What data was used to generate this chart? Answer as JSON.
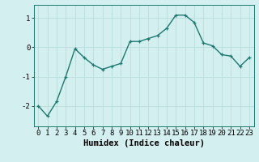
{
  "x": [
    0,
    1,
    2,
    3,
    4,
    5,
    6,
    7,
    8,
    9,
    10,
    11,
    12,
    13,
    14,
    15,
    16,
    17,
    18,
    19,
    20,
    21,
    22,
    23
  ],
  "y": [
    -2.0,
    -2.35,
    -1.85,
    -1.0,
    -0.05,
    -0.35,
    -0.6,
    -0.75,
    -0.65,
    -0.55,
    0.2,
    0.2,
    0.3,
    0.4,
    0.65,
    1.1,
    1.1,
    0.85,
    0.15,
    0.05,
    -0.25,
    -0.3,
    -0.65,
    -0.35
  ],
  "line_color": "#1a7a6e",
  "marker": "+",
  "marker_size": 3,
  "bg_color": "#d4efef",
  "grid_color": "#b8dede",
  "xlabel": "Humidex (Indice chaleur)",
  "xlim": [
    -0.5,
    23.5
  ],
  "ylim": [
    -2.7,
    1.45
  ],
  "yticks": [
    -2,
    -1,
    0,
    1
  ],
  "xticks": [
    0,
    1,
    2,
    3,
    4,
    5,
    6,
    7,
    8,
    9,
    10,
    11,
    12,
    13,
    14,
    15,
    16,
    17,
    18,
    19,
    20,
    21,
    22,
    23
  ],
  "xlabel_fontsize": 7.5,
  "tick_fontsize": 6.5,
  "line_width": 1.0,
  "marker_edge_width": 0.9
}
